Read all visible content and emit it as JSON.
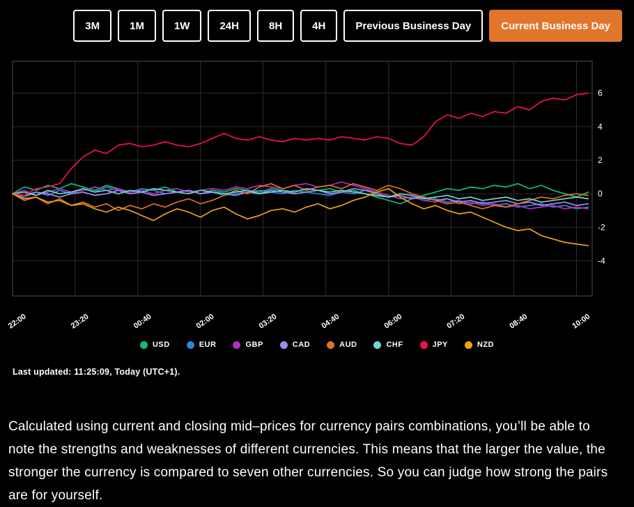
{
  "accent_color": "#e1752c",
  "toolbar": {
    "buttons": [
      {
        "label": "3M",
        "active": false
      },
      {
        "label": "1M",
        "active": false
      },
      {
        "label": "1W",
        "active": false
      },
      {
        "label": "24H",
        "active": false
      },
      {
        "label": "8H",
        "active": false
      },
      {
        "label": "4H",
        "active": false
      },
      {
        "label": "Previous Business Day",
        "active": false
      },
      {
        "label": "Current Business Day",
        "active": true
      }
    ]
  },
  "chart_data": {
    "type": "line",
    "title": "",
    "xlabel": "",
    "ylabel": "",
    "grid": true,
    "legend_position": "bottom",
    "background": "#000000",
    "grid_color": "#2d2d2d",
    "border_color": "#4f4f4f",
    "ylim": [
      -6.1,
      7.9
    ],
    "y_ticks": [
      6,
      4,
      2,
      0,
      -2,
      -4
    ],
    "x_labels": [
      "22:00",
      "23:20",
      "00:40",
      "02:00",
      "03:20",
      "04:40",
      "06:00",
      "07:20",
      "08:40",
      "10:00"
    ],
    "x_tick_interval_minutes": 80,
    "x_step_minutes": 15,
    "x_total_minutes": 740,
    "series": [
      {
        "name": "USD",
        "color": "#0dbf76",
        "values": [
          0.0,
          0.4,
          0.2,
          0.5,
          0.3,
          0.6,
          0.4,
          0.2,
          0.5,
          0.3,
          0.1,
          0.3,
          0.2,
          0.4,
          0.1,
          0.2,
          0.0,
          0.2,
          0.1,
          0.3,
          0.2,
          0.1,
          0.3,
          0.2,
          0.0,
          0.1,
          0.2,
          0.3,
          0.1,
          0.2,
          0.0,
          -0.2,
          -0.4,
          -0.6,
          -0.3,
          -0.1,
          0.1,
          0.3,
          0.2,
          0.4,
          0.3,
          0.5,
          0.4,
          0.6,
          0.3,
          0.5,
          0.2,
          0.0,
          -0.2,
          0.1
        ]
      },
      {
        "name": "EUR",
        "color": "#2d86d4",
        "values": [
          0.0,
          -0.2,
          0.1,
          -0.1,
          0.2,
          0.0,
          0.3,
          0.1,
          0.4,
          0.2,
          0.1,
          0.3,
          0.2,
          0.0,
          0.1,
          0.2,
          0.0,
          0.1,
          -0.1,
          0.0,
          0.1,
          0.2,
          0.1,
          0.0,
          0.2,
          0.1,
          0.0,
          -0.1,
          0.1,
          0.0,
          0.2,
          0.1,
          -0.1,
          -0.3,
          -0.2,
          -0.4,
          -0.3,
          -0.5,
          -0.4,
          -0.6,
          -0.5,
          -0.7,
          -0.6,
          -0.8,
          -0.7,
          -0.6,
          -0.8,
          -0.7,
          -0.9,
          -0.8
        ]
      },
      {
        "name": "GBP",
        "color": "#b02fc2",
        "values": [
          0.0,
          0.2,
          -0.1,
          0.1,
          0.3,
          0.1,
          0.2,
          0.4,
          0.2,
          0.3,
          0.1,
          0.2,
          0.0,
          0.2,
          0.3,
          0.1,
          0.2,
          0.3,
          0.2,
          0.4,
          0.3,
          0.5,
          0.4,
          0.3,
          0.5,
          0.6,
          0.4,
          0.5,
          0.7,
          0.5,
          0.3,
          0.1,
          -0.1,
          -0.3,
          -0.2,
          -0.4,
          -0.5,
          -0.3,
          -0.6,
          -0.5,
          -0.7,
          -0.6,
          -0.8,
          -0.7,
          -0.9,
          -0.8,
          -0.7,
          -0.9,
          -0.8,
          -0.9
        ]
      },
      {
        "name": "CAD",
        "color": "#9e8cf2",
        "values": [
          0.0,
          -0.1,
          0.1,
          0.0,
          -0.2,
          0.0,
          0.1,
          -0.1,
          0.0,
          0.2,
          0.0,
          0.1,
          -0.1,
          0.0,
          0.1,
          0.2,
          0.0,
          0.1,
          0.0,
          -0.1,
          0.1,
          0.0,
          0.2,
          0.1,
          0.0,
          0.1,
          0.2,
          0.0,
          0.1,
          0.3,
          0.2,
          0.0,
          -0.2,
          -0.1,
          -0.3,
          -0.2,
          -0.4,
          -0.3,
          -0.5,
          -0.4,
          -0.6,
          -0.5,
          -0.4,
          -0.6,
          -0.5,
          -0.7,
          -0.6,
          -0.5,
          -0.7,
          -0.6
        ]
      },
      {
        "name": "AUD",
        "color": "#e0702c",
        "values": [
          0.0,
          -0.4,
          -0.2,
          -0.6,
          -0.3,
          -0.7,
          -0.5,
          -0.8,
          -0.6,
          -1.0,
          -0.7,
          -0.9,
          -0.6,
          -0.8,
          -0.5,
          -0.3,
          -0.6,
          -0.4,
          -0.1,
          0.2,
          0.0,
          0.4,
          0.6,
          0.3,
          0.5,
          0.2,
          0.4,
          0.5,
          0.3,
          0.6,
          0.4,
          0.2,
          0.5,
          0.3,
          0.0,
          -0.2,
          -0.4,
          -0.6,
          -0.5,
          -0.7,
          -0.9,
          -0.7,
          -0.8,
          -0.6,
          -0.4,
          -0.2,
          -0.3,
          -0.1,
          0.0,
          -0.1
        ]
      },
      {
        "name": "CHF",
        "color": "#72d5c9",
        "values": [
          0.0,
          0.1,
          -0.1,
          0.2,
          0.0,
          0.1,
          0.3,
          0.1,
          0.2,
          0.0,
          0.2,
          0.1,
          0.3,
          0.2,
          0.1,
          0.0,
          0.2,
          0.1,
          0.0,
          0.1,
          0.2,
          0.0,
          0.1,
          0.2,
          0.1,
          0.3,
          0.2,
          0.1,
          0.2,
          0.1,
          0.0,
          -0.1,
          -0.2,
          0.0,
          -0.1,
          -0.3,
          -0.2,
          -0.1,
          -0.3,
          -0.2,
          -0.4,
          -0.3,
          -0.2,
          -0.4,
          -0.3,
          -0.5,
          -0.4,
          -0.3,
          -0.2,
          -0.3
        ]
      },
      {
        "name": "JPY",
        "color": "#ef124e",
        "values": [
          0.0,
          -0.1,
          0.3,
          0.4,
          0.6,
          1.5,
          2.2,
          2.6,
          2.4,
          2.9,
          3.0,
          2.8,
          2.9,
          3.1,
          2.9,
          2.8,
          3.0,
          3.3,
          3.6,
          3.3,
          3.2,
          3.4,
          3.2,
          3.1,
          3.3,
          3.2,
          3.3,
          3.2,
          3.4,
          3.3,
          3.2,
          3.4,
          3.3,
          3.0,
          2.9,
          3.4,
          4.3,
          4.7,
          4.5,
          4.8,
          4.6,
          4.9,
          4.8,
          5.2,
          5.0,
          5.5,
          5.7,
          5.6,
          5.9,
          6.0
        ]
      },
      {
        "name": "NZD",
        "color": "#eda40e",
        "values": [
          0.0,
          -0.3,
          -0.2,
          -0.5,
          -0.4,
          -0.7,
          -0.6,
          -0.9,
          -1.1,
          -0.8,
          -1.0,
          -1.3,
          -1.6,
          -1.2,
          -0.9,
          -1.1,
          -1.4,
          -1.0,
          -0.8,
          -1.2,
          -1.5,
          -1.3,
          -1.0,
          -0.9,
          -1.1,
          -0.8,
          -0.6,
          -0.9,
          -0.7,
          -0.4,
          -0.2,
          0.1,
          0.3,
          -0.2,
          -0.6,
          -0.9,
          -0.7,
          -1.0,
          -1.2,
          -1.1,
          -1.4,
          -1.7,
          -2.0,
          -2.2,
          -2.1,
          -2.5,
          -2.7,
          -2.9,
          -3.0,
          -3.1
        ]
      }
    ]
  },
  "status": {
    "last_updated": "Last updated: 11:25:09, Today (UTC+1)."
  },
  "description": "Calculated using current and closing mid–prices for currency pairs combinations, you’ll be able to note the strengths and weaknesses of different currencies. This means that the larger the value, the stronger the currency is compared to seven other currencies. So you can judge how strong the pairs are for yourself."
}
